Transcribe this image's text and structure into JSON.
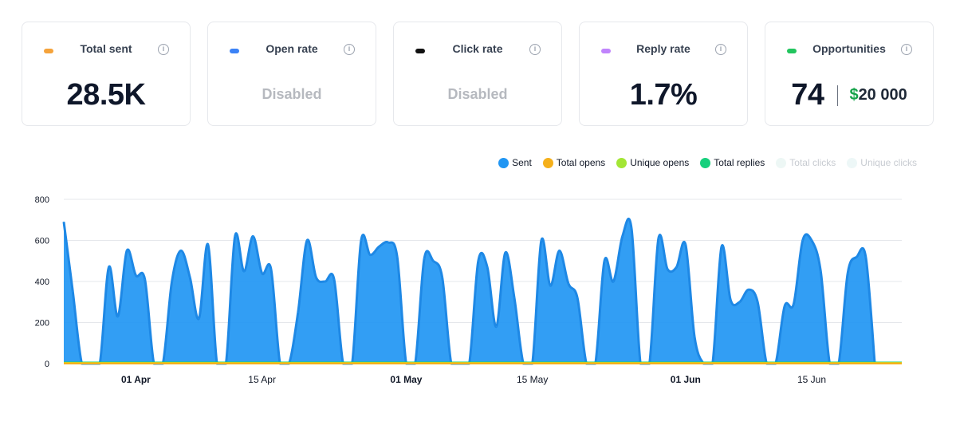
{
  "cards": [
    {
      "label": "Total sent",
      "value": "28.5K",
      "color": "#f5a33b",
      "disabled": false
    },
    {
      "label": "Open rate",
      "value": "Disabled",
      "color": "#3b82f6",
      "disabled": true
    },
    {
      "label": "Click rate",
      "value": "Disabled",
      "color": "#111111",
      "disabled": true
    },
    {
      "label": "Reply rate",
      "value": "1.7%",
      "color": "#c084fc",
      "disabled": false
    },
    {
      "label": "Opportunities",
      "value": "74",
      "color": "#22c55e",
      "disabled": false,
      "currency": "$",
      "amount": "20 000"
    }
  ],
  "info_icon_glyph": "i",
  "legend": [
    {
      "label": "Sent",
      "color": "#2196f3",
      "active": true
    },
    {
      "label": "Total opens",
      "color": "#f5b01b",
      "active": true
    },
    {
      "label": "Unique opens",
      "color": "#a3e635",
      "active": true
    },
    {
      "label": "Total replies",
      "color": "#17d07d",
      "active": true
    },
    {
      "label": "Total clicks",
      "color": "#edf7f5",
      "active": false
    },
    {
      "label": "Unique clicks",
      "color": "#edf7f7",
      "active": false
    }
  ],
  "chart_data": {
    "type": "area",
    "x_start": "2023-03-24",
    "x_end": "2023-06-25",
    "ylim": [
      0,
      800
    ],
    "yticks": [
      0,
      200,
      400,
      600,
      800
    ],
    "xticks": [
      {
        "date": "2023-04-01",
        "label": "01 Apr",
        "bold": true
      },
      {
        "date": "2023-04-15",
        "label": "15 Apr",
        "bold": false
      },
      {
        "date": "2023-05-01",
        "label": "01 May",
        "bold": true
      },
      {
        "date": "2023-05-15",
        "label": "15 May",
        "bold": false
      },
      {
        "date": "2023-06-01",
        "label": "01 Jun",
        "bold": true
      },
      {
        "date": "2023-06-15",
        "label": "15 Jun",
        "bold": false
      }
    ],
    "series": [
      {
        "name": "Sent",
        "color": "#2196f3",
        "points": [
          [
            "2023-03-24",
            690
          ],
          [
            "2023-03-25",
            350
          ],
          [
            "2023-03-26",
            0
          ],
          [
            "2023-03-27",
            0
          ],
          [
            "2023-03-28",
            0
          ],
          [
            "2023-03-29",
            470
          ],
          [
            "2023-03-30",
            230
          ],
          [
            "2023-03-31",
            550
          ],
          [
            "2023-04-01",
            430
          ],
          [
            "2023-04-02",
            410
          ],
          [
            "2023-04-03",
            0
          ],
          [
            "2023-04-04",
            0
          ],
          [
            "2023-04-05",
            400
          ],
          [
            "2023-04-06",
            550
          ],
          [
            "2023-04-07",
            420
          ],
          [
            "2023-04-08",
            220
          ],
          [
            "2023-04-09",
            580
          ],
          [
            "2023-04-10",
            0
          ],
          [
            "2023-04-11",
            0
          ],
          [
            "2023-04-12",
            620
          ],
          [
            "2023-04-13",
            450
          ],
          [
            "2023-04-14",
            620
          ],
          [
            "2023-04-15",
            440
          ],
          [
            "2023-04-16",
            460
          ],
          [
            "2023-04-17",
            0
          ],
          [
            "2023-04-18",
            0
          ],
          [
            "2023-04-19",
            250
          ],
          [
            "2023-04-20",
            600
          ],
          [
            "2023-04-21",
            420
          ],
          [
            "2023-04-22",
            400
          ],
          [
            "2023-04-23",
            410
          ],
          [
            "2023-04-24",
            0
          ],
          [
            "2023-04-25",
            0
          ],
          [
            "2023-04-26",
            600
          ],
          [
            "2023-04-27",
            530
          ],
          [
            "2023-04-28",
            570
          ],
          [
            "2023-04-29",
            590
          ],
          [
            "2023-04-30",
            520
          ],
          [
            "2023-05-01",
            0
          ],
          [
            "2023-05-02",
            0
          ],
          [
            "2023-05-03",
            510
          ],
          [
            "2023-05-04",
            500
          ],
          [
            "2023-05-05",
            420
          ],
          [
            "2023-05-06",
            0
          ],
          [
            "2023-05-07",
            0
          ],
          [
            "2023-05-08",
            0
          ],
          [
            "2023-05-09",
            500
          ],
          [
            "2023-05-10",
            470
          ],
          [
            "2023-05-11",
            180
          ],
          [
            "2023-05-12",
            540
          ],
          [
            "2023-05-13",
            320
          ],
          [
            "2023-05-14",
            0
          ],
          [
            "2023-05-15",
            0
          ],
          [
            "2023-05-16",
            600
          ],
          [
            "2023-05-17",
            380
          ],
          [
            "2023-05-18",
            550
          ],
          [
            "2023-05-19",
            390
          ],
          [
            "2023-05-20",
            320
          ],
          [
            "2023-05-21",
            0
          ],
          [
            "2023-05-22",
            0
          ],
          [
            "2023-05-23",
            500
          ],
          [
            "2023-05-24",
            400
          ],
          [
            "2023-05-25",
            620
          ],
          [
            "2023-05-26",
            660
          ],
          [
            "2023-05-27",
            0
          ],
          [
            "2023-05-28",
            0
          ],
          [
            "2023-05-29",
            610
          ],
          [
            "2023-05-30",
            460
          ],
          [
            "2023-05-31",
            470
          ],
          [
            "2023-06-01",
            580
          ],
          [
            "2023-06-02",
            130
          ],
          [
            "2023-06-03",
            0
          ],
          [
            "2023-06-04",
            0
          ],
          [
            "2023-06-05",
            570
          ],
          [
            "2023-06-06",
            310
          ],
          [
            "2023-06-07",
            300
          ],
          [
            "2023-06-08",
            360
          ],
          [
            "2023-06-09",
            300
          ],
          [
            "2023-06-10",
            0
          ],
          [
            "2023-06-11",
            0
          ],
          [
            "2023-06-12",
            280
          ],
          [
            "2023-06-13",
            290
          ],
          [
            "2023-06-14",
            600
          ],
          [
            "2023-06-15",
            600
          ],
          [
            "2023-06-16",
            450
          ],
          [
            "2023-06-17",
            0
          ],
          [
            "2023-06-18",
            0
          ],
          [
            "2023-06-19",
            440
          ],
          [
            "2023-06-20",
            520
          ],
          [
            "2023-06-21",
            520
          ],
          [
            "2023-06-22",
            0
          ]
        ]
      },
      {
        "name": "Total replies",
        "color": "#17d07d",
        "constant": 5
      },
      {
        "name": "Unique opens",
        "color": "#a3e635",
        "constant": 3
      },
      {
        "name": "Total opens",
        "color": "#f5b01b",
        "constant": 1
      }
    ]
  }
}
